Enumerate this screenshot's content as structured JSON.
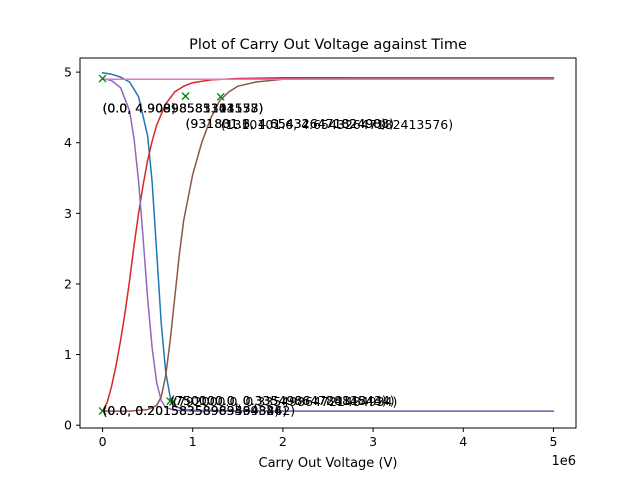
{
  "chart_data": {
    "type": "line",
    "title": "Plot of Carry Out Voltage against Time",
    "xlabel": "Carry Out Voltage (V)",
    "ylabel": "",
    "x_offset_text": "1e6",
    "xlim": [
      -250000,
      5250000
    ],
    "ylim": [
      -0.04,
      5.2
    ],
    "x_ticks": [
      0,
      1000000,
      2000000,
      3000000,
      4000000,
      5000000
    ],
    "x_tick_labels": [
      "0",
      "1",
      "2",
      "3",
      "4",
      "5"
    ],
    "y_ticks": [
      0,
      1,
      2,
      3,
      4,
      5
    ],
    "y_tick_labels": [
      "0",
      "1",
      "2",
      "3",
      "4",
      "5"
    ],
    "grid": false,
    "legend": "none",
    "series": [
      {
        "color": "#1f77b4",
        "x": [
          0,
          100000,
          200000,
          300000,
          400000,
          500000,
          550000,
          600000,
          650000,
          700000,
          750000,
          800000,
          900000,
          1000000,
          2000000,
          3000000,
          4000000,
          5000000
        ],
        "y": [
          4.99,
          4.97,
          4.93,
          4.86,
          4.65,
          4.1,
          3.45,
          2.45,
          1.45,
          0.75,
          0.4,
          0.27,
          0.22,
          0.21,
          0.2,
          0.2,
          0.2,
          0.2
        ]
      },
      {
        "color": "#d62728",
        "x": [
          0,
          50000,
          100000,
          150000,
          200000,
          250000,
          300000,
          350000,
          400000,
          450000,
          500000,
          550000,
          600000,
          700000,
          800000,
          900000,
          1000000,
          1200000,
          1500000,
          2000000,
          3000000,
          5000000
        ],
        "y": [
          0.2,
          0.32,
          0.55,
          0.85,
          1.2,
          1.6,
          2.05,
          2.55,
          3.0,
          3.4,
          3.75,
          4.02,
          4.25,
          4.55,
          4.72,
          4.8,
          4.85,
          4.89,
          4.91,
          4.92,
          4.92,
          4.92
        ]
      },
      {
        "color": "#9467bd",
        "x": [
          0,
          100000,
          200000,
          300000,
          350000,
          400000,
          450000,
          500000,
          550000,
          600000,
          650000,
          700000,
          800000,
          1000000,
          2000000,
          3000000,
          4000000,
          5000000
        ],
        "y": [
          4.91,
          4.88,
          4.78,
          4.45,
          4.05,
          3.45,
          2.65,
          1.8,
          1.1,
          0.6,
          0.35,
          0.25,
          0.21,
          0.2,
          0.2,
          0.2,
          0.2,
          0.2
        ]
      },
      {
        "color": "#8c564b",
        "x": [
          0,
          300000,
          500000,
          600000,
          650000,
          700000,
          750000,
          800000,
          850000,
          900000,
          1000000,
          1100000,
          1200000,
          1300000,
          1400000,
          1500000,
          1700000,
          2000000,
          2500000,
          3000000,
          5000000
        ],
        "y": [
          0.2,
          0.2,
          0.22,
          0.28,
          0.4,
          0.7,
          1.2,
          1.8,
          2.4,
          2.9,
          3.55,
          4.0,
          4.35,
          4.6,
          4.72,
          4.8,
          4.86,
          4.9,
          4.91,
          4.92,
          4.92
        ]
      },
      {
        "color": "#e377c2",
        "x": [
          0,
          500000,
          1000000,
          2000000,
          3000000,
          4000000,
          5000000
        ],
        "y": [
          4.9,
          4.9,
          4.9,
          4.9,
          4.9,
          4.9,
          4.9
        ]
      }
    ],
    "markers": [
      {
        "x": 0,
        "y": 4.909
      },
      {
        "x": 0,
        "y": 0.2016
      },
      {
        "x": 920000,
        "y": 4.66
      },
      {
        "x": 1310000,
        "y": 4.65
      },
      {
        "x": 750000,
        "y": 0.34
      },
      {
        "x": 780000,
        "y": 0.33
      }
    ],
    "marker_color": "#008000",
    "annotations": [
      {
        "text": "(0.0, 4.909)",
        "x": 0,
        "y": 4.909
      },
      {
        "text": "(0.0, 4.90898585103153)",
        "x": 0,
        "y": 4.909
      },
      {
        "text": "(0.0, 4.90898581344538)",
        "x": 0,
        "y": 4.909
      },
      {
        "text": "(0.0, 4.90898583311577)",
        "x": 0,
        "y": 4.909
      },
      {
        "text": "(931801.3, 4.65432647182498)",
        "x": 920000,
        "y": 4.66
      },
      {
        "text": "(1310101.6, 4.65432647182413576)",
        "x": 1310000,
        "y": 4.65
      },
      {
        "text": "(931831.6, 4.654326471824908)",
        "x": 920000,
        "y": 4.66
      },
      {
        "text": "(0.0, 0.20158358969364384)",
        "x": 0,
        "y": 0.2016
      },
      {
        "text": "(0.0, 0.201583589835943262)",
        "x": 0,
        "y": 0.2016
      },
      {
        "text": "(0.0, 0.2015835898343984)",
        "x": 0,
        "y": 0.2016
      },
      {
        "text": "(750100.0, 0.33549864784815434)",
        "x": 750000,
        "y": 0.34
      },
      {
        "text": "(792000.0, 0.33549864721484934)",
        "x": 780000,
        "y": 0.33
      },
      {
        "text": "(750000.0, 0.3354986472814844)",
        "x": 750000,
        "y": 0.34
      }
    ]
  }
}
